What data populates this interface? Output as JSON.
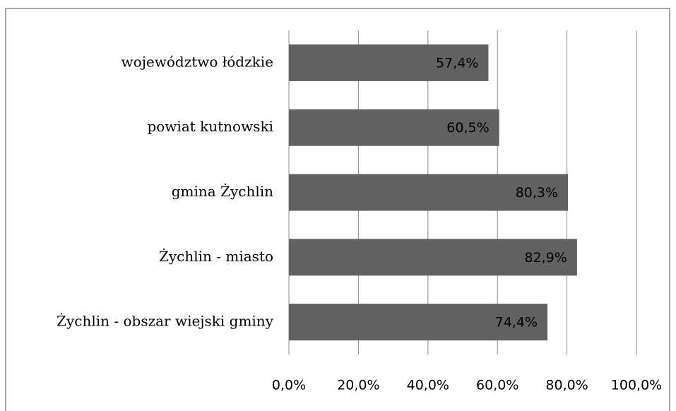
{
  "chart_data": {
    "type": "barh",
    "categories": [
      "województwo łódzkie",
      "powiat kutnowski",
      "gmina Żychlin",
      "Żychlin - miasto",
      "Żychlin - obszar wiejski gminy"
    ],
    "values": [
      57.4,
      60.5,
      80.3,
      82.9,
      74.4
    ],
    "value_labels": [
      "57,4%",
      "60,5%",
      "80,3%",
      "82,9%",
      "74,4%"
    ],
    "color": "#616161",
    "xlim": [
      0,
      100
    ],
    "xticks": [
      {
        "value": 0,
        "label": "0,0%"
      },
      {
        "value": 20,
        "label": "20,0%"
      },
      {
        "value": 40,
        "label": "40,0%"
      },
      {
        "value": 60,
        "label": "60,0%"
      },
      {
        "value": 80,
        "label": "80,0%"
      },
      {
        "value": 100,
        "label": "100,0%"
      }
    ],
    "grid": true
  }
}
